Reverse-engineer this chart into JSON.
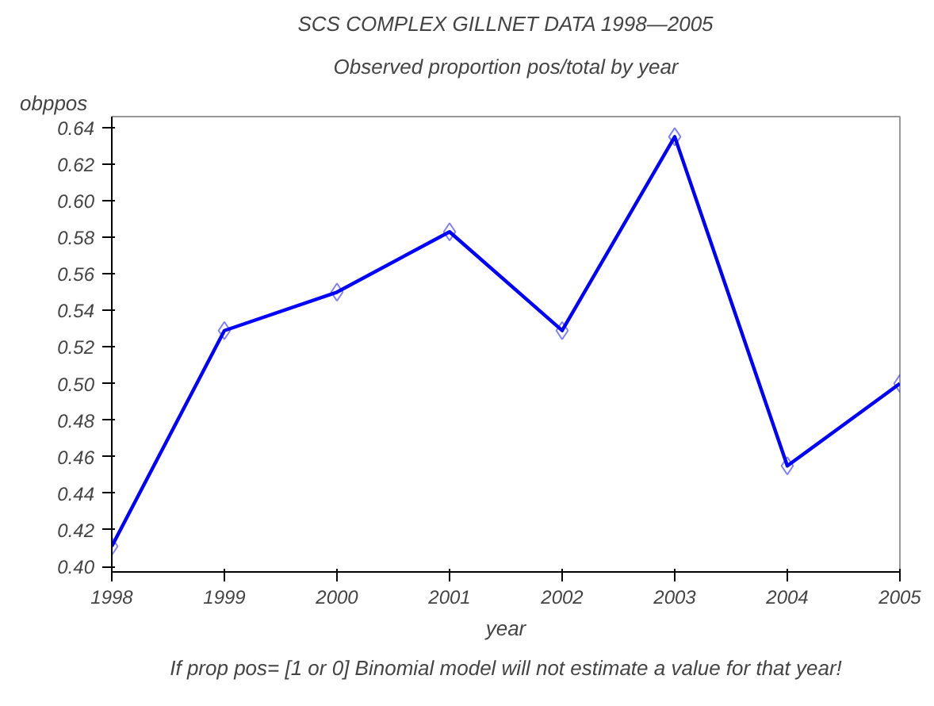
{
  "chart_data": {
    "type": "line",
    "title": "SCS COMPLEX GILLNET DATA 1998—2005",
    "subtitle": "Observed proportion pos/total by year",
    "xlabel": "year",
    "ylabel": "obppos",
    "x": [
      1998,
      1999,
      2000,
      2001,
      2002,
      2003,
      2004,
      2005
    ],
    "series": [
      {
        "color": "#0000ff",
        "values": [
          0.411,
          0.529,
          0.55,
          0.583,
          0.529,
          0.635,
          0.455,
          0.5
        ]
      }
    ],
    "xlim": [
      1998,
      2005
    ],
    "xticks": [
      {
        "value": 1998,
        "label": "1998"
      },
      {
        "value": 1999,
        "label": "1999"
      },
      {
        "value": 2000,
        "label": "2000"
      },
      {
        "value": 2001,
        "label": "2001"
      },
      {
        "value": 2002,
        "label": "2002"
      },
      {
        "value": 2003,
        "label": "2003"
      },
      {
        "value": 2004,
        "label": "2004"
      },
      {
        "value": 2005,
        "label": "2005"
      }
    ],
    "ylim": [
      0.397,
      0.646
    ],
    "yticks": [
      {
        "value": 0.4,
        "label": "0.40"
      },
      {
        "value": 0.42,
        "label": "0.42"
      },
      {
        "value": 0.44,
        "label": "0.44"
      },
      {
        "value": 0.46,
        "label": "0.46"
      },
      {
        "value": 0.48,
        "label": "0.48"
      },
      {
        "value": 0.5,
        "label": "0.50"
      },
      {
        "value": 0.52,
        "label": "0.52"
      },
      {
        "value": 0.54,
        "label": "0.54"
      },
      {
        "value": 0.56,
        "label": "0.56"
      },
      {
        "value": 0.58,
        "label": "0.58"
      },
      {
        "value": 0.6,
        "label": "0.60"
      },
      {
        "value": 0.62,
        "label": "0.62"
      },
      {
        "value": 0.64,
        "label": "0.64"
      }
    ],
    "marker": "diamond",
    "line_style": "solid",
    "grid": false,
    "annotations": [
      "If prop pos= [1 or 0] Binomial model will not estimate a value for that year!"
    ]
  }
}
